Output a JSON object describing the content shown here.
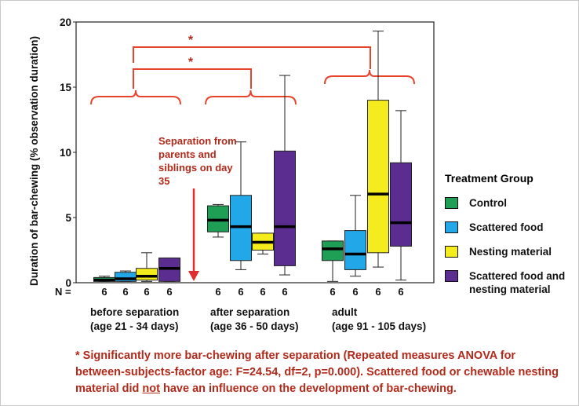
{
  "chart_data": {
    "type": "box",
    "ylabel": "Duration of bar-chewing (% observation duration)",
    "ylim": [
      0,
      20
    ],
    "yticks": [
      0,
      5,
      10,
      15,
      20
    ],
    "n_label": "N =",
    "groups": [
      {
        "label_line1": "before separation",
        "label_line2": "(age 21 - 34 days)"
      },
      {
        "label_line1": "after separation",
        "label_line2": "(age 36 - 50 days)"
      },
      {
        "label_line1": "adult",
        "label_line2": "(age 91 - 105 days)"
      }
    ],
    "series": [
      {
        "name": "Control",
        "color": "#1f9e55",
        "boxes": [
          {
            "group": 0,
            "whisker_low": 0.1,
            "q1": 0.1,
            "median": 0.2,
            "q3": 0.4,
            "whisker_high": 0.5,
            "n": "6"
          },
          {
            "group": 1,
            "whisker_low": 3.5,
            "q1": 3.9,
            "median": 4.8,
            "q3": 5.9,
            "whisker_high": 6.0,
            "n": "6"
          },
          {
            "group": 2,
            "whisker_low": 0.1,
            "q1": 1.7,
            "median": 2.6,
            "q3": 3.2,
            "whisker_high": 3.2,
            "n": "6"
          }
        ]
      },
      {
        "name": "Scattered food",
        "color": "#22a7e8",
        "boxes": [
          {
            "group": 0,
            "whisker_low": 0.1,
            "q1": 0.1,
            "median": 0.3,
            "q3": 0.8,
            "whisker_high": 0.9,
            "n": "6"
          },
          {
            "group": 1,
            "whisker_low": 1.0,
            "q1": 1.7,
            "median": 4.3,
            "q3": 6.7,
            "whisker_high": 10.8,
            "n": "6"
          },
          {
            "group": 2,
            "whisker_low": 0.5,
            "q1": 1.0,
            "median": 2.2,
            "q3": 4.0,
            "whisker_high": 6.7,
            "n": "6"
          }
        ]
      },
      {
        "name": "Nesting material",
        "color": "#f4ec1c",
        "boxes": [
          {
            "group": 0,
            "whisker_low": 0.1,
            "q1": 0.2,
            "median": 0.5,
            "q3": 1.1,
            "whisker_high": 2.3,
            "n": "6"
          },
          {
            "group": 1,
            "whisker_low": 2.2,
            "q1": 2.5,
            "median": 3.1,
            "q3": 3.8,
            "whisker_high": 3.8,
            "n": "6"
          },
          {
            "group": 2,
            "whisker_low": 1.2,
            "q1": 2.3,
            "median": 6.8,
            "q3": 14.0,
            "whisker_high": 19.3,
            "n": "6"
          }
        ]
      },
      {
        "name": "Scattered food and nesting material",
        "color": "#5c2d91",
        "boxes": [
          {
            "group": 0,
            "whisker_low": 0.1,
            "q1": 0.1,
            "median": 1.1,
            "q3": 1.9,
            "whisker_high": 1.9,
            "n": "6"
          },
          {
            "group": 1,
            "whisker_low": 0.6,
            "q1": 1.3,
            "median": 4.3,
            "q3": 10.1,
            "whisker_high": 15.9,
            "n": "6"
          },
          {
            "group": 2,
            "whisker_low": 0.2,
            "q1": 2.8,
            "median": 4.6,
            "q3": 9.2,
            "whisker_high": 13.2,
            "n": "6"
          }
        ]
      }
    ],
    "significance_markers": [
      "*",
      "*"
    ],
    "annotation": "Separation from parents and siblings on day 35",
    "legend_title": "Treatment Group",
    "legend_position": "right"
  },
  "legend": {
    "title": "Treatment Group",
    "items": [
      "Control",
      "Scattered food",
      "Nesting material",
      "Scattered food and nesting material"
    ]
  },
  "footnote": {
    "part1": "* Significantly more bar-chewing after separation (Repeated measures ANOVA for between-subjects-factor age: F=24.54, df=2, p=0.000). Scattered food or chewable nesting material did ",
    "emph": "not",
    "part2": " have an influence on the development of bar-chewing."
  }
}
